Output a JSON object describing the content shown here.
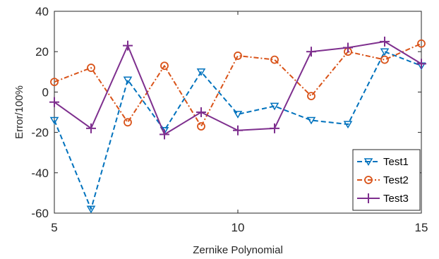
{
  "chart_data": {
    "type": "line",
    "title": "",
    "xlabel": "Zernike Polynomial",
    "ylabel": "Error/100%",
    "xlim": [
      5,
      15
    ],
    "ylim": [
      -60,
      40
    ],
    "xticks": [
      5,
      10,
      15
    ],
    "yticks": [
      -60,
      -40,
      -20,
      0,
      20,
      40
    ],
    "grid": false,
    "legend_position": "bottom-right",
    "x": [
      5,
      6,
      7,
      8,
      9,
      10,
      11,
      12,
      13,
      14,
      15
    ],
    "series": [
      {
        "name": "Test1",
        "color": "#0072BD",
        "line_style": "dashed",
        "marker": "triangle-down",
        "values": [
          -14,
          -58,
          6,
          -19,
          10,
          -11,
          -7,
          -14,
          -16,
          20,
          13
        ]
      },
      {
        "name": "Test2",
        "color": "#D95319",
        "line_style": "dash-dot",
        "marker": "circle",
        "values": [
          5,
          12,
          -15,
          13,
          -17,
          18,
          16,
          -2,
          20,
          16,
          24
        ]
      },
      {
        "name": "Test3",
        "color": "#7E2F8E",
        "line_style": "solid",
        "marker": "plus",
        "values": [
          -5,
          -18,
          23,
          -21,
          -10,
          -19,
          -18,
          20,
          22,
          25,
          14
        ]
      }
    ]
  }
}
